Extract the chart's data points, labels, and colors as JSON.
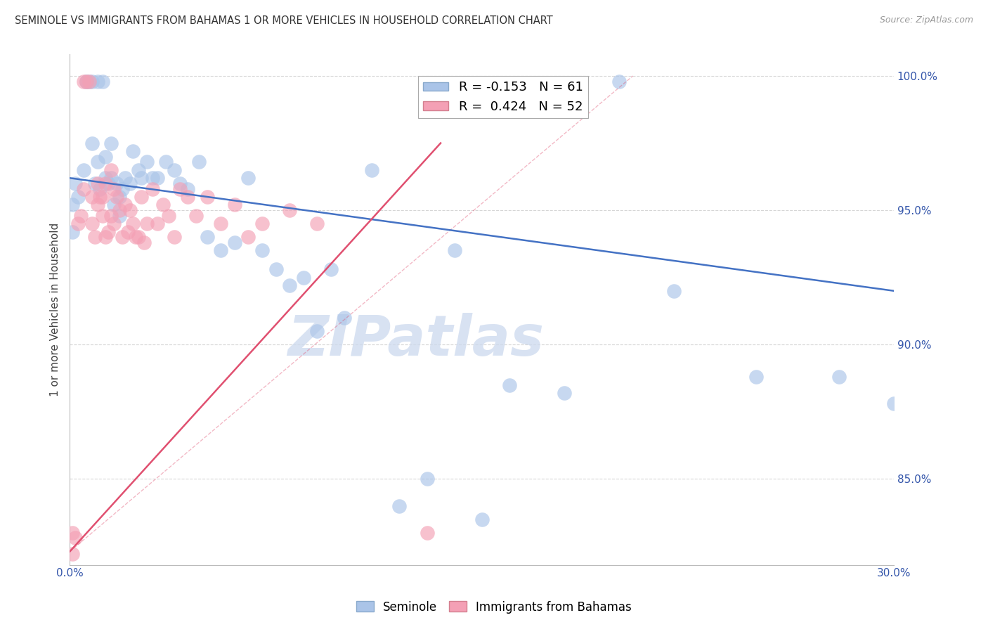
{
  "title": "SEMINOLE VS IMMIGRANTS FROM BAHAMAS 1 OR MORE VEHICLES IN HOUSEHOLD CORRELATION CHART",
  "source_text": "Source: ZipAtlas.com",
  "ylabel": "1 or more Vehicles in Household",
  "x_min": 0.0,
  "x_max": 0.3,
  "y_min": 0.818,
  "y_max": 1.008,
  "x_ticks": [
    0.0,
    0.05,
    0.1,
    0.15,
    0.2,
    0.25,
    0.3
  ],
  "x_tick_labels": [
    "0.0%",
    "",
    "",
    "",
    "",
    "",
    "30.0%"
  ],
  "y_ticks": [
    0.85,
    0.9,
    0.95,
    1.0
  ],
  "y_tick_labels": [
    "85.0%",
    "90.0%",
    "95.0%",
    "100.0%"
  ],
  "grid_color": "#cccccc",
  "background_color": "#ffffff",
  "seminole_color": "#aac4e8",
  "bahamas_color": "#f4a0b5",
  "seminole_line_color": "#4472c4",
  "bahamas_line_color": "#e05070",
  "seminole_R": -0.153,
  "seminole_N": 61,
  "bahamas_R": 0.424,
  "bahamas_N": 52,
  "watermark": "ZIPatlas",
  "watermark_color": "#c8d8f0",
  "seminole_scatter_x": [
    0.001,
    0.001,
    0.002,
    0.003,
    0.005,
    0.006,
    0.006,
    0.007,
    0.008,
    0.008,
    0.009,
    0.01,
    0.01,
    0.011,
    0.012,
    0.013,
    0.013,
    0.014,
    0.015,
    0.015,
    0.016,
    0.017,
    0.018,
    0.018,
    0.019,
    0.02,
    0.022,
    0.023,
    0.025,
    0.026,
    0.028,
    0.03,
    0.032,
    0.035,
    0.038,
    0.04,
    0.043,
    0.047,
    0.05,
    0.055,
    0.06,
    0.065,
    0.07,
    0.075,
    0.08,
    0.085,
    0.09,
    0.095,
    0.1,
    0.11,
    0.12,
    0.13,
    0.14,
    0.15,
    0.16,
    0.18,
    0.2,
    0.22,
    0.25,
    0.28,
    0.3
  ],
  "seminole_scatter_y": [
    0.952,
    0.942,
    0.96,
    0.955,
    0.965,
    0.998,
    0.998,
    0.998,
    0.998,
    0.975,
    0.96,
    0.998,
    0.968,
    0.958,
    0.998,
    0.97,
    0.962,
    0.96,
    0.975,
    0.962,
    0.952,
    0.96,
    0.955,
    0.948,
    0.958,
    0.962,
    0.96,
    0.972,
    0.965,
    0.962,
    0.968,
    0.962,
    0.962,
    0.968,
    0.965,
    0.96,
    0.958,
    0.968,
    0.94,
    0.935,
    0.938,
    0.962,
    0.935,
    0.928,
    0.922,
    0.925,
    0.905,
    0.928,
    0.91,
    0.965,
    0.84,
    0.85,
    0.935,
    0.835,
    0.885,
    0.882,
    0.998,
    0.92,
    0.888,
    0.888,
    0.878
  ],
  "bahamas_scatter_x": [
    0.001,
    0.001,
    0.002,
    0.003,
    0.004,
    0.005,
    0.005,
    0.006,
    0.007,
    0.008,
    0.008,
    0.009,
    0.01,
    0.01,
    0.011,
    0.012,
    0.012,
    0.013,
    0.013,
    0.014,
    0.015,
    0.015,
    0.016,
    0.016,
    0.017,
    0.018,
    0.019,
    0.02,
    0.021,
    0.022,
    0.023,
    0.024,
    0.025,
    0.026,
    0.027,
    0.028,
    0.03,
    0.032,
    0.034,
    0.036,
    0.038,
    0.04,
    0.043,
    0.046,
    0.05,
    0.055,
    0.06,
    0.065,
    0.07,
    0.08,
    0.09,
    0.13
  ],
  "bahamas_scatter_y": [
    0.83,
    0.822,
    0.828,
    0.945,
    0.948,
    0.958,
    0.998,
    0.998,
    0.998,
    0.945,
    0.955,
    0.94,
    0.952,
    0.96,
    0.955,
    0.948,
    0.955,
    0.96,
    0.94,
    0.942,
    0.965,
    0.948,
    0.958,
    0.945,
    0.955,
    0.95,
    0.94,
    0.952,
    0.942,
    0.95,
    0.945,
    0.94,
    0.94,
    0.955,
    0.938,
    0.945,
    0.958,
    0.945,
    0.952,
    0.948,
    0.94,
    0.958,
    0.955,
    0.948,
    0.955,
    0.945,
    0.952,
    0.94,
    0.945,
    0.95,
    0.945,
    0.83
  ],
  "seminole_trend": [
    -0.153,
    0.958,
    0.82
  ],
  "bahamas_trend": [
    0.424,
    0.83,
    0.13
  ]
}
